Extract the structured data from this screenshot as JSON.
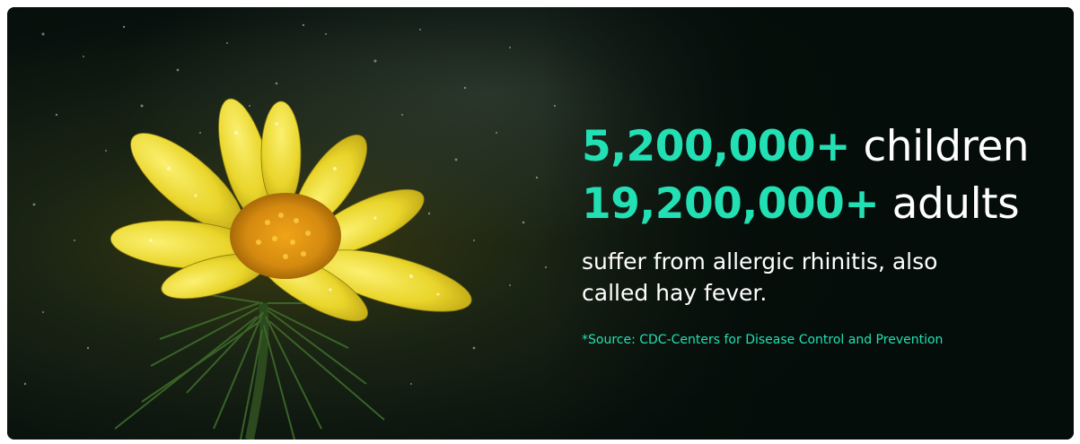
{
  "banner": {
    "stats": [
      {
        "number": "5,200,000+",
        "label": "children"
      },
      {
        "number": "19,200,000+",
        "label": "adults"
      }
    ],
    "description": "suffer from allergic rhinitis, also called hay fever.",
    "source": "*Source: CDC-Centers for Disease Control and Prevention"
  },
  "colors": {
    "accent": "#22e0b4",
    "text": "#ffffff",
    "background": "#050d0a",
    "flower": "#f2e033"
  },
  "image": {
    "subject": "yellow-flower-photo"
  }
}
